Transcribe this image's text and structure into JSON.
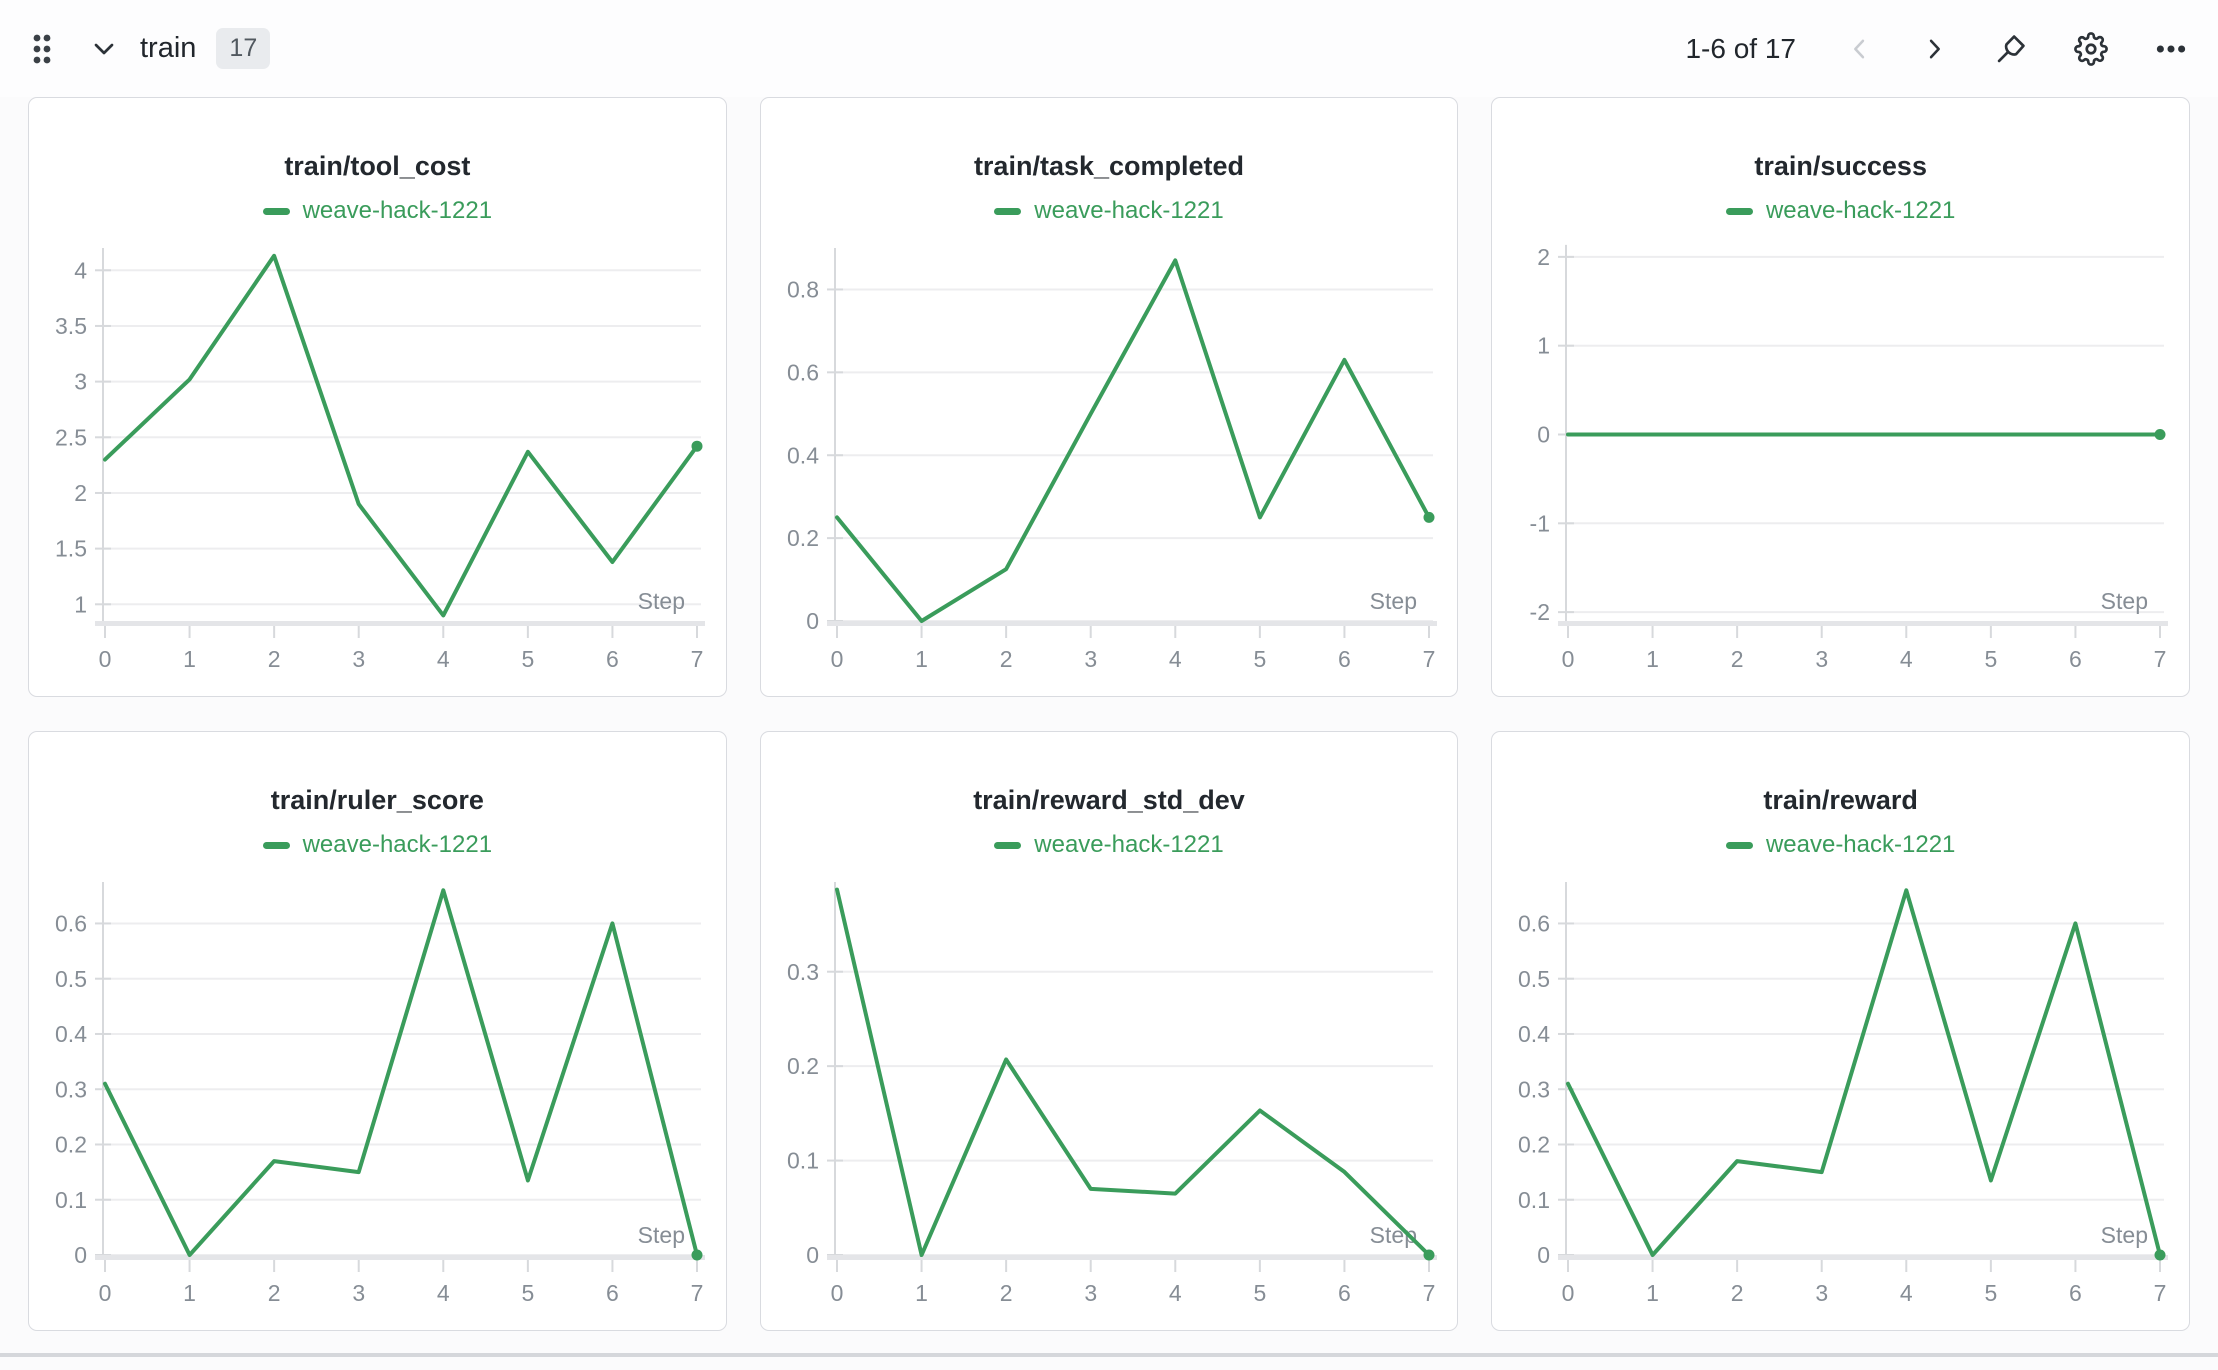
{
  "header": {
    "collapse_label": "train",
    "badge_count": "17",
    "pagination": "1-6 of 17"
  },
  "colors": {
    "accent_green": "#3a9c5b",
    "title_text": "#23282e",
    "tick_label": "#868d95",
    "grid_line": "#ededef",
    "axis_line": "#d7d9dc",
    "baseline": "#e4e5e8",
    "icon_dark": "#2c3238",
    "icon_disabled": "#c9ccd1"
  },
  "chart_data": [
    {
      "type": "line",
      "title": "train/tool_cost",
      "xlabel": "Step",
      "series": [
        {
          "name": "weave-hack-1221",
          "x": [
            0,
            1,
            2,
            3,
            4,
            5,
            6,
            7
          ],
          "values": [
            2.3,
            3.02,
            4.13,
            1.9,
            0.9,
            2.37,
            1.38,
            2.42
          ]
        }
      ],
      "xticks": [
        0,
        1,
        2,
        3,
        4,
        5,
        6,
        7
      ],
      "yticks": [
        1,
        1.5,
        2,
        2.5,
        3,
        3.5,
        4
      ],
      "xlim": [
        0,
        7
      ],
      "ylim": [
        0.85,
        4.2
      ],
      "grid": "horizontal",
      "legend_position": "top-center",
      "end_marker": true
    },
    {
      "type": "line",
      "title": "train/task_completed",
      "xlabel": "Step",
      "series": [
        {
          "name": "weave-hack-1221",
          "x": [
            0,
            1,
            2,
            3,
            4,
            5,
            6,
            7
          ],
          "values": [
            0.25,
            0,
            0.125,
            0.5,
            0.87,
            0.25,
            0.63,
            0.25
          ]
        }
      ],
      "xticks": [
        0,
        1,
        2,
        3,
        4,
        5,
        6,
        7
      ],
      "yticks": [
        0,
        0.2,
        0.4,
        0.6,
        0.8
      ],
      "xlim": [
        0,
        7
      ],
      "ylim": [
        0,
        0.9
      ],
      "grid": "horizontal",
      "legend_position": "top-center",
      "end_marker": true
    },
    {
      "type": "line",
      "title": "train/success",
      "xlabel": "Step",
      "series": [
        {
          "name": "weave-hack-1221",
          "x": [
            0,
            1,
            2,
            3,
            4,
            5,
            6,
            7
          ],
          "values": [
            0,
            0,
            0,
            0,
            0,
            0,
            0,
            0
          ]
        }
      ],
      "xticks": [
        0,
        1,
        2,
        3,
        4,
        5,
        6,
        7
      ],
      "yticks": [
        -2,
        -1,
        0,
        1,
        2
      ],
      "xlim": [
        0,
        7
      ],
      "ylim": [
        -2.1,
        2.1
      ],
      "grid": "horizontal",
      "legend_position": "top-center",
      "end_marker": true
    },
    {
      "type": "line",
      "title": "train/ruler_score",
      "xlabel": "Step",
      "series": [
        {
          "name": "weave-hack-1221",
          "x": [
            0,
            1,
            2,
            3,
            4,
            5,
            6,
            7
          ],
          "values": [
            0.31,
            0,
            0.17,
            0.15,
            0.66,
            0.135,
            0.6,
            0
          ]
        }
      ],
      "xticks": [
        0,
        1,
        2,
        3,
        4,
        5,
        6,
        7
      ],
      "yticks": [
        0,
        0.1,
        0.2,
        0.3,
        0.4,
        0.5,
        0.6
      ],
      "xlim": [
        0,
        7
      ],
      "ylim": [
        0,
        0.675
      ],
      "grid": "horizontal",
      "legend_position": "top-center",
      "end_marker": true
    },
    {
      "type": "line",
      "title": "train/reward_std_dev",
      "xlabel": "Step",
      "series": [
        {
          "name": "weave-hack-1221",
          "x": [
            0,
            1,
            2,
            3,
            4,
            5,
            6,
            7
          ],
          "values": [
            0.387,
            0,
            0.207,
            0.07,
            0.065,
            0.153,
            0.088,
            0
          ]
        }
      ],
      "xticks": [
        0,
        1,
        2,
        3,
        4,
        5,
        6,
        7
      ],
      "yticks": [
        0,
        0.1,
        0.2,
        0.3
      ],
      "xlim": [
        0,
        7
      ],
      "ylim": [
        0,
        0.395
      ],
      "grid": "horizontal",
      "legend_position": "top-center",
      "end_marker": true
    },
    {
      "type": "line",
      "title": "train/reward",
      "xlabel": "Step",
      "series": [
        {
          "name": "weave-hack-1221",
          "x": [
            0,
            1,
            2,
            3,
            4,
            5,
            6,
            7
          ],
          "values": [
            0.31,
            0,
            0.17,
            0.15,
            0.66,
            0.135,
            0.6,
            0
          ]
        }
      ],
      "xticks": [
        0,
        1,
        2,
        3,
        4,
        5,
        6,
        7
      ],
      "yticks": [
        0,
        0.1,
        0.2,
        0.3,
        0.4,
        0.5,
        0.6
      ],
      "xlim": [
        0,
        7
      ],
      "ylim": [
        0,
        0.675
      ],
      "grid": "horizontal",
      "legend_position": "top-center",
      "end_marker": true
    }
  ]
}
